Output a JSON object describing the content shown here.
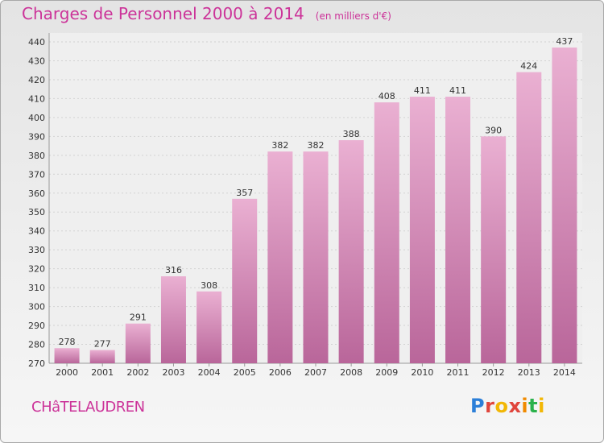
{
  "title": "Charges de Personnel 2000 à 2014",
  "subtitle": "(en milliers d'€)",
  "city": "CHâTELAUDREN",
  "logo": {
    "letters": [
      "P",
      "r",
      "o",
      "x",
      "i",
      "t",
      "i"
    ]
  },
  "colors": {
    "title": "#cc3399",
    "bar_light": "#eab0d2",
    "bar_dark": "#b9669a",
    "grid": "#d2d2d2"
  },
  "chart_data": {
    "type": "bar",
    "categories": [
      "2000",
      "2001",
      "2002",
      "2003",
      "2004",
      "2005",
      "2006",
      "2007",
      "2008",
      "2009",
      "2010",
      "2011",
      "2012",
      "2013",
      "2014"
    ],
    "values": [
      278,
      277,
      291,
      316,
      308,
      357,
      382,
      382,
      388,
      408,
      411,
      411,
      390,
      424,
      437
    ],
    "data_labels": [
      "278",
      "277",
      "291",
      "316",
      "308",
      "357",
      "382",
      "382",
      "388",
      "408",
      "411",
      "411",
      "390",
      "424",
      "437"
    ],
    "yticks": [
      270,
      280,
      290,
      300,
      310,
      320,
      330,
      340,
      350,
      360,
      370,
      380,
      390,
      400,
      410,
      420,
      430,
      440
    ],
    "ylim": [
      270,
      440
    ],
    "grid": true
  }
}
